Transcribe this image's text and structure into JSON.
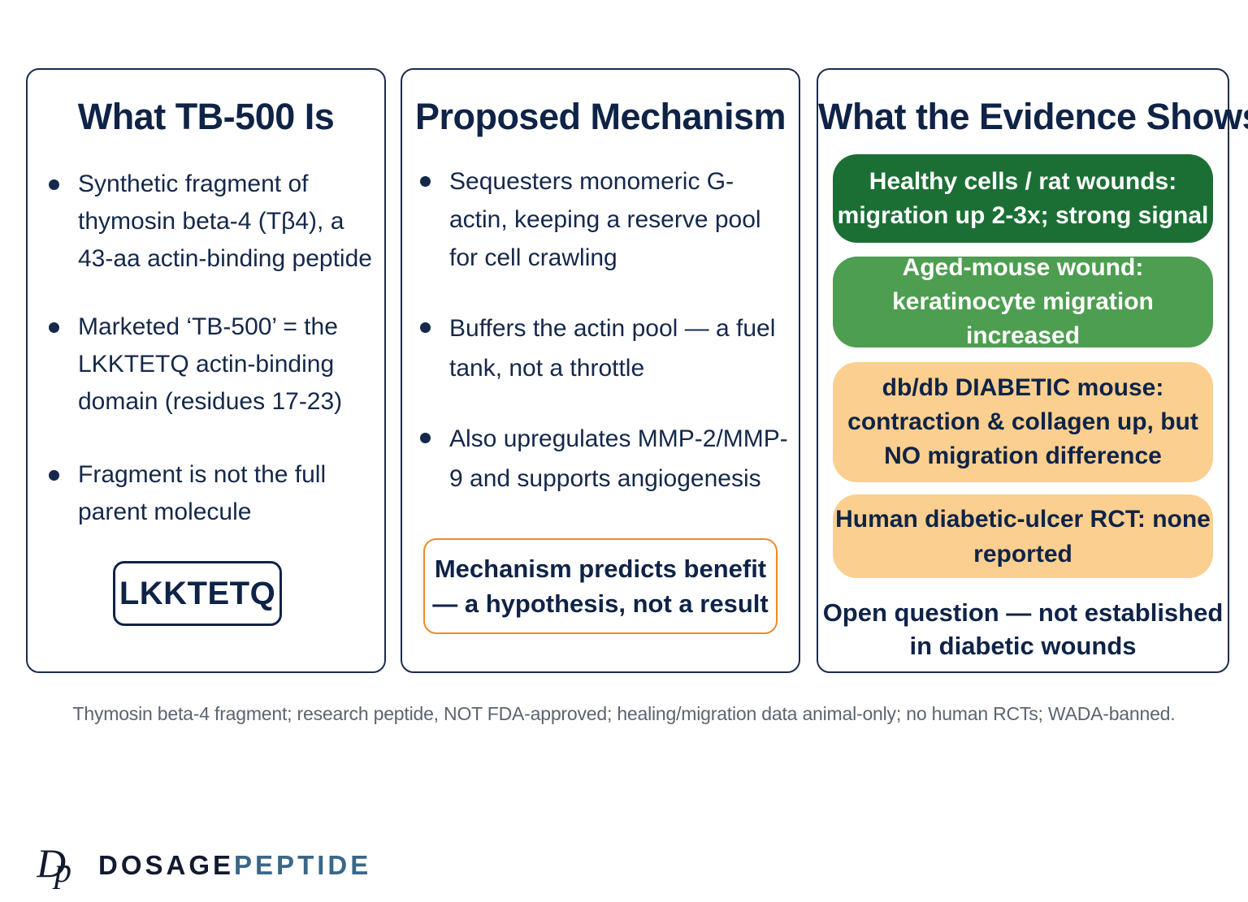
{
  "panels": [
    {
      "title": "What TB-500 Is",
      "bullets": [
        "Synthetic fragment of thymosin beta-4 (Tβ4), a 43-aa actin-binding peptide",
        "Marketed ‘TB-500’ = the LKKTETQ actin-binding domain (residues 17-23)",
        "Fragment is not the full parent molecule"
      ],
      "sequence_label": "LKKTETQ"
    },
    {
      "title": "Proposed Mechanism",
      "bullets": [
        "Sequesters monomeric G-actin, keeping a reserve pool for cell crawling",
        "Buffers the actin pool — a fuel tank, not a throttle",
        "Also upregulates MMP-2/MMP-9 and supports angiogenesis"
      ],
      "callout": "Mechanism predicts benefit — a hypothesis, not a result"
    },
    {
      "title": "What the Evidence Shows",
      "evidence": [
        {
          "text": "Healthy cells / rat wounds: migration up 2-3x; strong signal",
          "color": "#1b6f35"
        },
        {
          "text": "Aged-mouse wound: keratinocyte migration increased",
          "color": "#4d9e50"
        },
        {
          "text": "db/db DIABETIC mouse: contraction & collagen up, but NO migration difference",
          "color": "#fbcf8f"
        },
        {
          "text": "Human diabetic-ulcer RCT: none reported",
          "color": "#fbcf8f"
        }
      ],
      "conclusion": "Open question — not established in diabetic wounds"
    }
  ],
  "footnote": "Thymosin beta-4 fragment; research  peptide, NOT FDA-approved; healing/migration data animal-only; no human RCTs; WADA-banned.",
  "brand": {
    "part1": "DOSAGE",
    "part2": "PEPTIDE",
    "logo_icon": "dp-monogram-icon"
  }
}
